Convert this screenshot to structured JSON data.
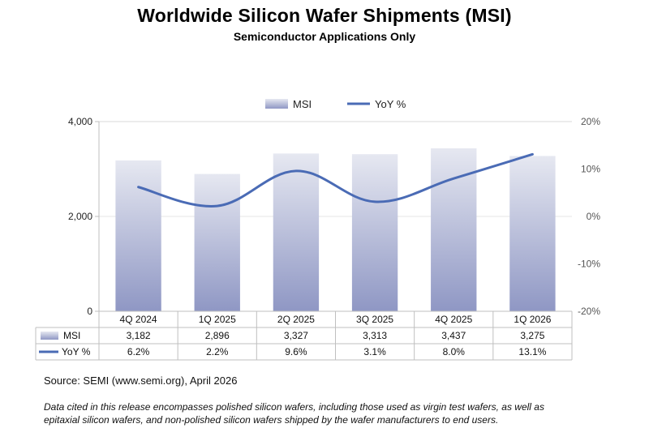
{
  "header": {
    "title": "Worldwide Silicon Wafer Shipments (MSI)",
    "subtitle": "Semiconductor Applications Only"
  },
  "chart_data": {
    "type": "bar",
    "title": "Worldwide Silicon Wafer Shipments (MSI)",
    "subtitle": "Semiconductor Applications Only",
    "categories": [
      "4Q 2024",
      "1Q 2025",
      "2Q 2025",
      "3Q 2025",
      "4Q 2025",
      "1Q 2026"
    ],
    "series": [
      {
        "name": "MSI",
        "type": "bar",
        "axis": "left",
        "values": [
          3182,
          2896,
          3327,
          3313,
          3437,
          3275
        ],
        "labels": [
          "3,182",
          "2,896",
          "3,327",
          "3,313",
          "3,437",
          "3,275"
        ]
      },
      {
        "name": "YoY %",
        "type": "line",
        "axis": "right",
        "values": [
          6.2,
          2.2,
          9.6,
          3.1,
          8.0,
          13.1
        ],
        "labels": [
          "6.2%",
          "2.2%",
          "9.6%",
          "3.1%",
          "8.0%",
          "13.1%"
        ]
      }
    ],
    "ylim": [
      0,
      4000
    ],
    "y2lim": [
      -20,
      20
    ],
    "yticks": [
      "0",
      "2,000",
      "4,000"
    ],
    "y2ticks": [
      "20%",
      "10%",
      "0%",
      "-10%",
      "-20%"
    ],
    "legend": {
      "position": "top-center",
      "entries": [
        "MSI",
        "YoY %"
      ]
    },
    "data_table": true,
    "colors": {
      "bar_top": "#e6e8f1",
      "bar_bottom": "#8f97c4",
      "line": "#4a6bb5"
    }
  },
  "footer": {
    "source": "Source: SEMI (www.semi.org), April 2026",
    "note_line1": "Data cited in this release encompasses polished silicon wafers, including those used as virgin test wafers, as well as",
    "note_line2": "epitaxial silicon wafers, and non-polished silicon wafers shipped by the wafer manufacturers to end users."
  }
}
